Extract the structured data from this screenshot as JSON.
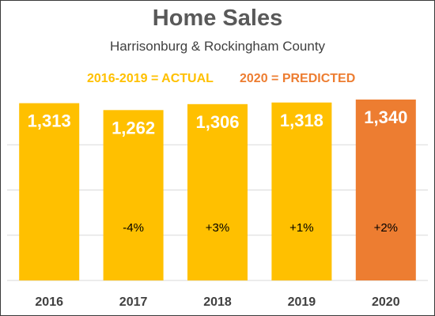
{
  "header": {
    "title": "Home Sales",
    "subtitle": "Harrisonburg & Rockingham County",
    "legend_actual": "2016-2019 = ACTUAL",
    "legend_predicted": "2020 = PREDICTED"
  },
  "colors": {
    "actual": "#FFC000",
    "predicted": "#ED7D31",
    "gridline": "#D9D9D9"
  },
  "chart_data": {
    "type": "bar",
    "title": "Home Sales",
    "subtitle": "Harrisonburg & Rockingham County",
    "categories": [
      "2016",
      "2017",
      "2018",
      "2019",
      "2020"
    ],
    "values": [
      1313,
      1262,
      1306,
      1318,
      1340
    ],
    "value_labels": [
      "1,313",
      "1,262",
      "1,306",
      "1,318",
      "1,340"
    ],
    "change_labels": [
      "",
      "-4%",
      "+3%",
      "+1%",
      "+2%"
    ],
    "series_status": [
      "actual",
      "actual",
      "actual",
      "actual",
      "predicted"
    ],
    "ylim": [
      0,
      1340
    ],
    "grid": true,
    "gridline_values": [
      335,
      670,
      1005
    ]
  }
}
